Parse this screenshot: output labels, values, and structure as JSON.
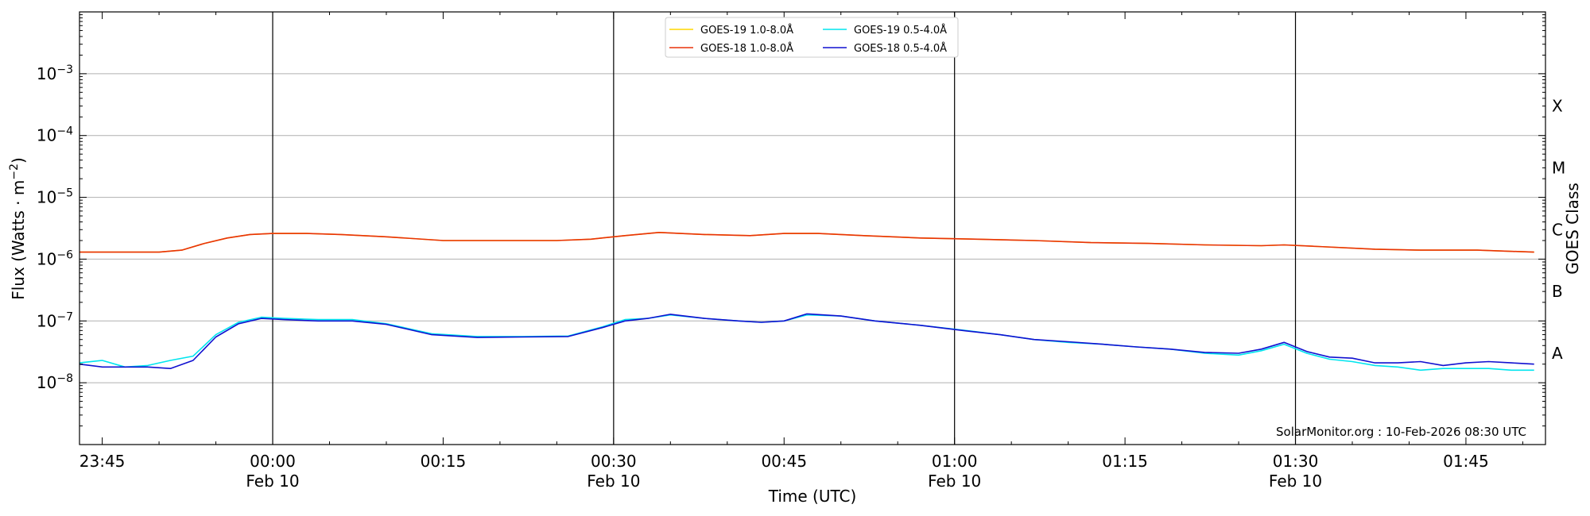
{
  "chart_data": {
    "type": "line",
    "xlabel": "Time (UTC)",
    "ylabel": "Flux (Watts · m",
    "ylabel_sup": "−2",
    "ylabel_close": ")",
    "right_label": "GOES Class",
    "y_scale": "log",
    "ylim": [
      1e-09,
      0.01
    ],
    "y_ticks": [
      {
        "value": 1e-08,
        "mantissa": "10",
        "exp": "−8"
      },
      {
        "value": 1e-07,
        "mantissa": "10",
        "exp": "−7"
      },
      {
        "value": 1e-06,
        "mantissa": "10",
        "exp": "−6"
      },
      {
        "value": 1e-05,
        "mantissa": "10",
        "exp": "−5"
      },
      {
        "value": 0.0001,
        "mantissa": "10",
        "exp": "−4"
      },
      {
        "value": 0.001,
        "mantissa": "10",
        "exp": "−3"
      }
    ],
    "xlim_minutes": [
      -17,
      112
    ],
    "x_ticks": [
      {
        "minute": -15,
        "line1": "23:45",
        "line2": ""
      },
      {
        "minute": 0,
        "line1": "00:00",
        "line2": "Feb 10"
      },
      {
        "minute": 15,
        "line1": "00:15",
        "line2": ""
      },
      {
        "minute": 30,
        "line1": "00:30",
        "line2": "Feb 10"
      },
      {
        "minute": 45,
        "line1": "00:45",
        "line2": ""
      },
      {
        "minute": 60,
        "line1": "01:00",
        "line2": "Feb 10"
      },
      {
        "minute": 75,
        "line1": "01:15",
        "line2": ""
      },
      {
        "minute": 90,
        "line1": "01:30",
        "line2": "Feb 10"
      },
      {
        "minute": 105,
        "line1": "01:45",
        "line2": ""
      }
    ],
    "day_lines_minutes": [
      0,
      30,
      60,
      90
    ],
    "grid": "horizontal at decades",
    "goes_classes": [
      {
        "label": "A",
        "value": 3e-08
      },
      {
        "label": "B",
        "value": 3e-07
      },
      {
        "label": "C",
        "value": 3e-06
      },
      {
        "label": "M",
        "value": 3e-05
      },
      {
        "label": "X",
        "value": 0.0003
      }
    ],
    "legend_position": "top-center",
    "credit": "SolarMonitor.org : 10-Feb-2026 08:30 UTC",
    "series": [
      {
        "name": "GOES-19 1.0-8.0Å",
        "color": "#ffd700",
        "x": [
          -17,
          -10,
          -8,
          -6,
          -4,
          -2,
          0,
          3,
          6,
          10,
          15,
          20,
          25,
          28,
          31,
          34,
          38,
          42,
          45,
          48,
          52,
          57,
          62,
          67,
          72,
          77,
          82,
          87,
          89,
          92,
          97,
          101,
          106,
          111
        ],
        "y": [
          1.3e-06,
          1.3e-06,
          1.4e-06,
          1.8e-06,
          2.2e-06,
          2.5e-06,
          2.6e-06,
          2.6e-06,
          2.5e-06,
          2.3e-06,
          2e-06,
          2e-06,
          2e-06,
          2.1e-06,
          2.4e-06,
          2.7e-06,
          2.5e-06,
          2.4e-06,
          2.6e-06,
          2.6e-06,
          2.4e-06,
          2.2e-06,
          2.1e-06,
          2e-06,
          1.85e-06,
          1.8e-06,
          1.7e-06,
          1.65e-06,
          1.7e-06,
          1.6e-06,
          1.45e-06,
          1.4e-06,
          1.4e-06,
          1.3e-06
        ]
      },
      {
        "name": "GOES-18 1.0-8.0Å",
        "color": "#e8320a",
        "x": [
          -17,
          -10,
          -8,
          -6,
          -4,
          -2,
          0,
          3,
          6,
          10,
          15,
          20,
          25,
          28,
          31,
          34,
          38,
          42,
          45,
          48,
          52,
          57,
          62,
          67,
          72,
          77,
          82,
          87,
          89,
          92,
          97,
          101,
          106,
          111
        ],
        "y": [
          1.3e-06,
          1.3e-06,
          1.4e-06,
          1.8e-06,
          2.2e-06,
          2.5e-06,
          2.6e-06,
          2.6e-06,
          2.5e-06,
          2.3e-06,
          2e-06,
          2e-06,
          2e-06,
          2.1e-06,
          2.4e-06,
          2.7e-06,
          2.5e-06,
          2.4e-06,
          2.6e-06,
          2.6e-06,
          2.4e-06,
          2.2e-06,
          2.1e-06,
          2e-06,
          1.85e-06,
          1.8e-06,
          1.7e-06,
          1.65e-06,
          1.7e-06,
          1.6e-06,
          1.45e-06,
          1.4e-06,
          1.4e-06,
          1.3e-06
        ]
      },
      {
        "name": "GOES-19 0.5-4.0Å",
        "color": "#00e5ee",
        "x": [
          -17,
          -15,
          -13,
          -11,
          -9,
          -7,
          -5,
          -3,
          -1,
          1,
          4,
          7,
          10,
          14,
          18,
          22,
          26,
          29,
          31,
          33,
          35,
          38,
          41,
          43,
          45,
          47,
          50,
          53,
          57,
          61,
          64,
          67,
          70,
          73,
          76,
          79,
          82,
          85,
          87,
          89,
          91,
          93,
          95,
          97,
          99,
          101,
          103,
          105,
          107,
          109,
          111
        ],
        "y": [
          2.1e-08,
          2.3e-08,
          1.8e-08,
          1.9e-08,
          2.3e-08,
          2.7e-08,
          6e-08,
          9.5e-08,
          1.15e-07,
          1.1e-07,
          1.05e-07,
          1.05e-07,
          9e-08,
          6.2e-08,
          5.6e-08,
          5.6e-08,
          5.7e-08,
          8e-08,
          1.05e-07,
          1.1e-07,
          1.25e-07,
          1.1e-07,
          1e-07,
          9.5e-08,
          1e-07,
          1.25e-07,
          1.2e-07,
          1e-07,
          8.5e-08,
          7e-08,
          6e-08,
          5e-08,
          4.5e-08,
          4.2e-08,
          3.8e-08,
          3.5e-08,
          3e-08,
          2.8e-08,
          3.3e-08,
          4.2e-08,
          3e-08,
          2.4e-08,
          2.2e-08,
          1.9e-08,
          1.8e-08,
          1.6e-08,
          1.7e-08,
          1.7e-08,
          1.7e-08,
          1.6e-08,
          1.6e-08
        ]
      },
      {
        "name": "GOES-18 0.5-4.0Å",
        "color": "#1010d0",
        "x": [
          -17,
          -15,
          -13,
          -11,
          -9,
          -7,
          -5,
          -3,
          -1,
          1,
          4,
          7,
          10,
          14,
          18,
          22,
          26,
          29,
          31,
          33,
          35,
          38,
          41,
          43,
          45,
          47,
          50,
          53,
          57,
          61,
          64,
          67,
          70,
          73,
          76,
          79,
          82,
          85,
          87,
          89,
          91,
          93,
          95,
          97,
          99,
          101,
          103,
          105,
          107,
          109,
          111
        ],
        "y": [
          2e-08,
          1.8e-08,
          1.8e-08,
          1.8e-08,
          1.7e-08,
          2.3e-08,
          5.5e-08,
          9e-08,
          1.1e-07,
          1.05e-07,
          1e-07,
          1e-07,
          8.8e-08,
          6e-08,
          5.4e-08,
          5.5e-08,
          5.6e-08,
          7.8e-08,
          1e-07,
          1.1e-07,
          1.28e-07,
          1.1e-07,
          1e-07,
          9.5e-08,
          1e-07,
          1.3e-07,
          1.2e-07,
          1e-07,
          8.5e-08,
          6.9e-08,
          6e-08,
          5e-08,
          4.6e-08,
          4.2e-08,
          3.8e-08,
          3.5e-08,
          3.1e-08,
          3e-08,
          3.5e-08,
          4.5e-08,
          3.2e-08,
          2.6e-08,
          2.5e-08,
          2.1e-08,
          2.1e-08,
          2.2e-08,
          1.9e-08,
          2.1e-08,
          2.2e-08,
          2.1e-08,
          2e-08
        ]
      }
    ]
  }
}
